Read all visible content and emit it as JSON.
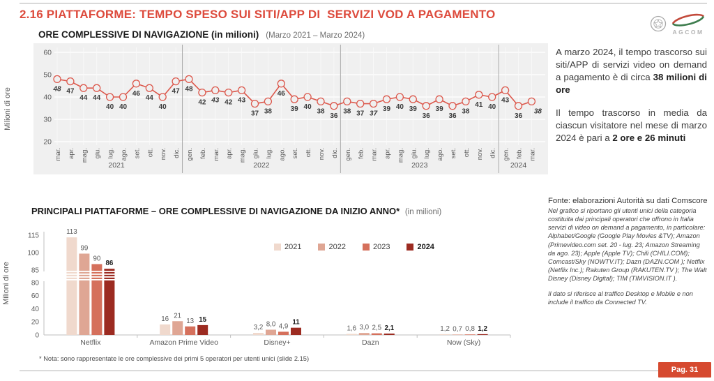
{
  "header": {
    "title": "2.16 PIATTAFORME: TEMPO SPESO SUI SITI/APP DI  SERVIZI VOD A PAGAMENTO",
    "logo_text": "AGCOM"
  },
  "colors": {
    "accent_red": "#dd4b3d",
    "line_series": "#dc584c",
    "plot_background": "#f0f0f0",
    "badge_red": "#d6492f",
    "year_2021": "#f0d9cd",
    "year_2022": "#dfa694",
    "year_2023": "#d5705c",
    "year_2024": "#9c2b21"
  },
  "chart_data": [
    {
      "type": "line",
      "title": "ORE COMPLESSIVE DI NAVIGAZIONE (in milioni)",
      "subtitle": "(Marzo 2021 – Marzo 2024)",
      "ylabel": "Milioni di ore",
      "ylim": [
        20,
        60
      ],
      "yticks": [
        20,
        30,
        40,
        50,
        60
      ],
      "grid": true,
      "line_color": "#dc584c",
      "bold_month": "mar.",
      "years": [
        {
          "year": "2021",
          "months": [
            "mar.",
            "apr.",
            "mag.",
            "giu.",
            "lug.",
            "ago.",
            "set.",
            "ott.",
            "nov.",
            "dic."
          ],
          "values": [
            48,
            47,
            44,
            44,
            40,
            40,
            46,
            44,
            40,
            47
          ]
        },
        {
          "year": "2022",
          "months": [
            "gen.",
            "feb.",
            "mar.",
            "apr.",
            "mag.",
            "giu.",
            "lug.",
            "ago.",
            "set.",
            "ott.",
            "nov.",
            "dic."
          ],
          "values": [
            48,
            42,
            43,
            42,
            43,
            37,
            38,
            46,
            39,
            40,
            38,
            36
          ]
        },
        {
          "year": "2023",
          "months": [
            "gen.",
            "feb.",
            "mar.",
            "apr.",
            "mag.",
            "giu.",
            "lug.",
            "ago.",
            "set.",
            "ott.",
            "nov.",
            "dic."
          ],
          "values": [
            38,
            37,
            37,
            39,
            40,
            39,
            36,
            39,
            36,
            38,
            41,
            40
          ]
        },
        {
          "year": "2024",
          "months": [
            "gen.",
            "feb.",
            "mar."
          ],
          "values": [
            43,
            36,
            38
          ]
        }
      ]
    },
    {
      "type": "bar",
      "title": "PRINCIPALI PIATTAFORME – ORE COMPLESSIVE DI NAVIGAZIONE DA INIZIO ANNO*",
      "subtitle": "(in milioni)",
      "ylabel": "Milioni di ore",
      "axis_break": true,
      "yticks_lower": [
        0,
        20,
        40,
        60,
        80
      ],
      "yticks_upper": [
        85,
        100,
        115
      ],
      "legend_position": "top-center",
      "categories": [
        "Netflix",
        "Amazon Prime Video",
        "Disney+",
        "Dazn",
        "Now (Sky)"
      ],
      "series": [
        {
          "name": "2021",
          "color": "#f0d9cd",
          "bold": false,
          "values": [
            113,
            16,
            3.2,
            1.6,
            1.2
          ],
          "labels": [
            "113",
            "16",
            "3,2",
            "1,6",
            "1,2"
          ]
        },
        {
          "name": "2022",
          "color": "#dfa694",
          "bold": false,
          "values": [
            99,
            21,
            8.0,
            3.0,
            0.7
          ],
          "labels": [
            "99",
            "21",
            "8,0",
            "3,0",
            "0,7"
          ]
        },
        {
          "name": "2023",
          "color": "#d5705c",
          "bold": false,
          "values": [
            90,
            13,
            4.9,
            2.5,
            0.8
          ],
          "labels": [
            "90",
            "13",
            "4,9",
            "2,5",
            "0,8"
          ]
        },
        {
          "name": "2024",
          "color": "#9c2b21",
          "bold": true,
          "values": [
            86,
            15,
            11,
            2.1,
            1.2
          ],
          "labels": [
            "86",
            "15",
            "11",
            "2,1",
            "1,2"
          ]
        }
      ]
    }
  ],
  "right_panel": {
    "p1_text": "A marzo 2024, il tempo trascorso sui siti/APP di servizi video on demand a pagamento è di circa ",
    "p1_bold": "38 milioni di ore",
    "p2_text": "Il tempo trascorso in media da ciascun visitatore nel mese di marzo 2024 è pari a ",
    "p2_bold": "2 ore e 26 minuti"
  },
  "source_panel": {
    "source": "Fonte: elaborazioni Autorità su dati Comscore",
    "note1": "Nel grafico si riportano gli utenti unici della categoria costituita dai principali operatori che offrono in Italia servizi di video on demand a pagamento, in particolare: Alphabet/Google (Google Play Movies &TV); Amazon (Primevideo.com set. 20 - lug. 23; Amazon Streaming da ago. 23); Apple (Apple TV); Chili (CHILI.COM); Comcast/Sky (NOWTV.IT); Dazn (DAZN.COM ); Netflix (Netflix Inc.); Rakuten Group (RAKUTEN.TV ); The Walt Disney (Disney Digital); TIM (TIMVISION.IT ).",
    "note2": "Il dato si riferisce al traffico Desktop e Mobile e non include il traffico da Connected TV."
  },
  "footer": {
    "note": "* Nota: sono rappresentate le ore complessive dei primi 5 operatori per utenti unici (slide 2.15)",
    "page": "Pag. 31"
  }
}
